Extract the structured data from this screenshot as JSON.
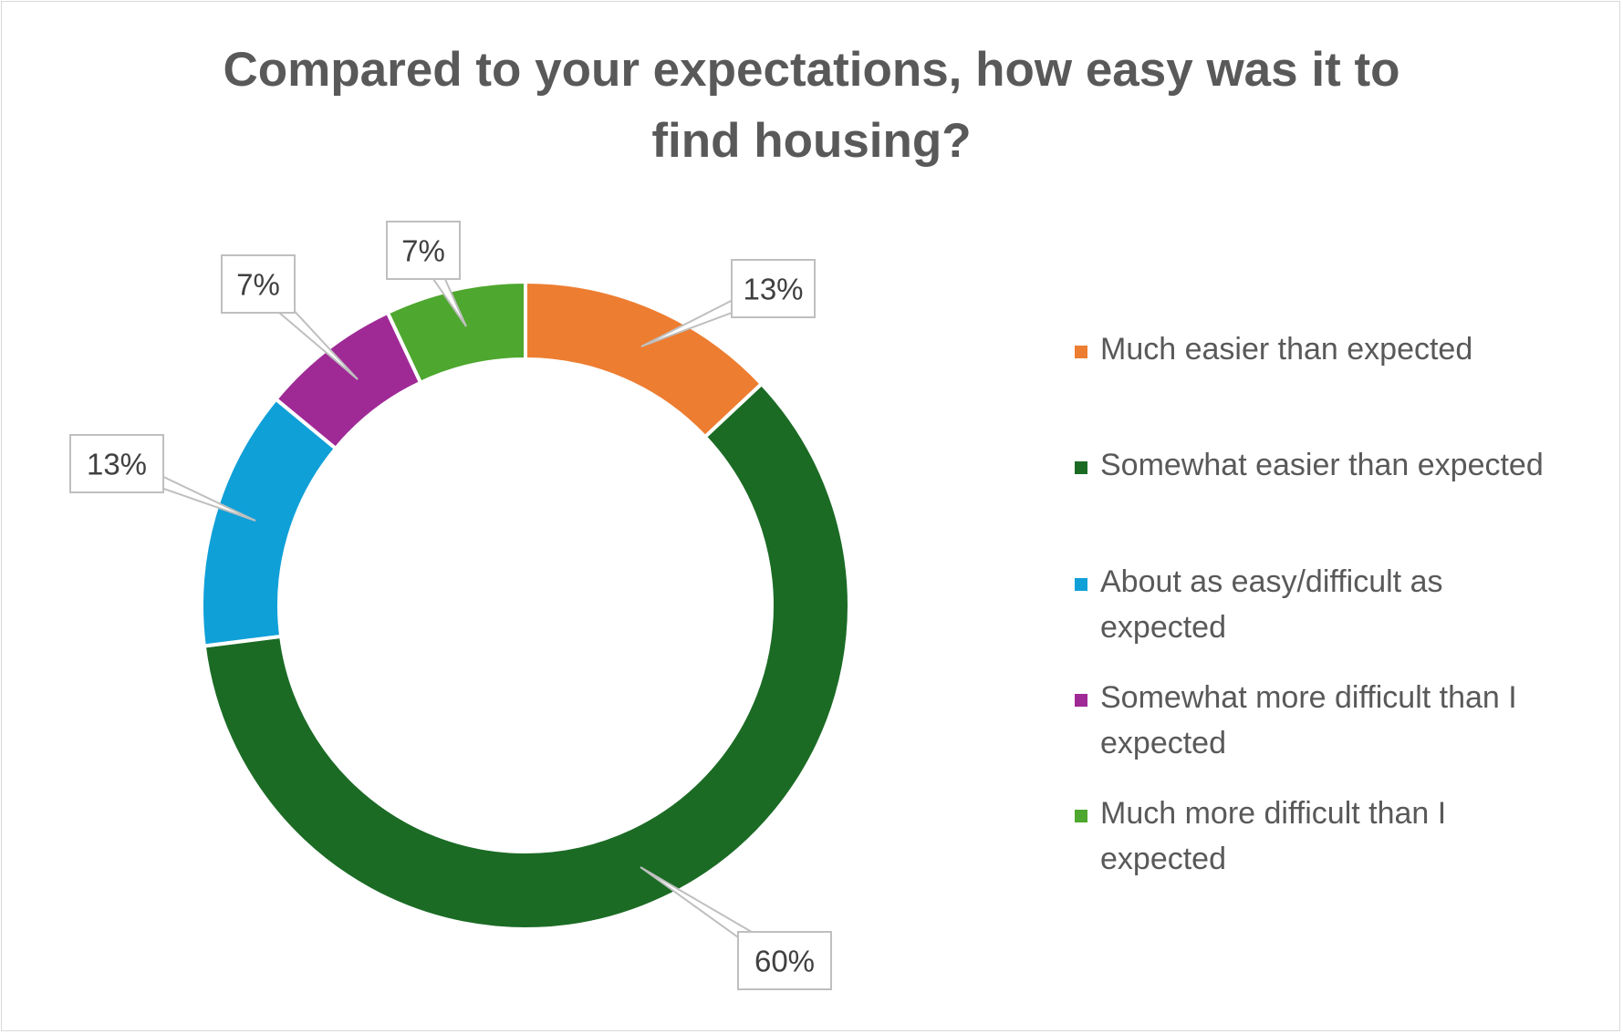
{
  "chart_data": {
    "type": "pie",
    "variant": "donut",
    "title": "Compared to your expectations, how easy was it to find housing?",
    "title_lines": [
      "Compared to your expectations, how easy was it to",
      "find housing?"
    ],
    "categories": [
      "Much easier than expected",
      "Somewhat easier than expected",
      "About as easy/difficult as expected",
      "Somewhat more difficult than I expected",
      "Much more difficult than I expected"
    ],
    "values": [
      13,
      60,
      13,
      7,
      7
    ],
    "value_labels": [
      "13%",
      "60%",
      "13%",
      "7%",
      "7%"
    ],
    "colors": [
      "#ed7d31",
      "#1b6b25",
      "#10a0d8",
      "#9f2a96",
      "#4ea72e"
    ],
    "legend_position": "right",
    "legend": [
      {
        "lines": [
          "Much easier than expected"
        ]
      },
      {
        "lines": [
          "Somewhat easier than expected"
        ]
      },
      {
        "lines": [
          "About as easy/difficult as",
          "expected"
        ]
      },
      {
        "lines": [
          "Somewhat more difficult than I",
          "expected"
        ]
      },
      {
        "lines": [
          "Much more difficult than I",
          "expected"
        ]
      }
    ],
    "data_labels": "callouts"
  }
}
